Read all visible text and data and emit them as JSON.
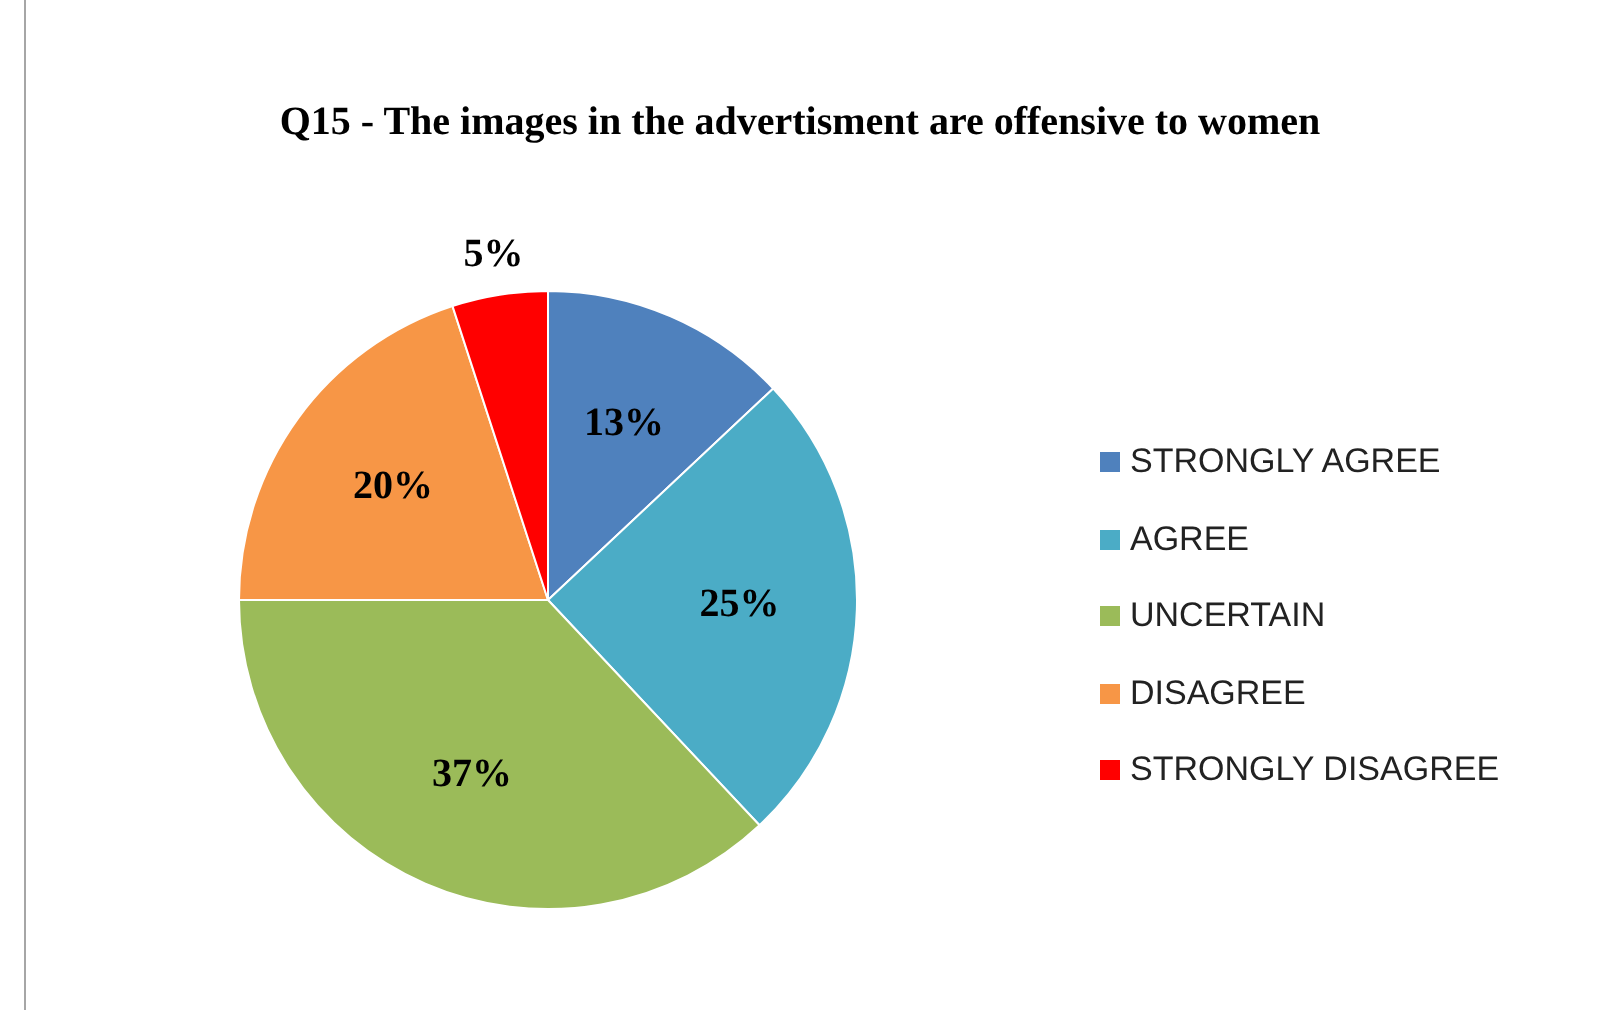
{
  "chart_data": {
    "type": "pie",
    "title": "Q15 - The images in the advertisment are offensive to women",
    "categories": [
      "STRONGLY AGREE",
      "AGREE",
      "UNCERTAIN",
      "DISAGREE",
      "STRONGLY DISAGREE"
    ],
    "values": [
      13,
      25,
      37,
      20,
      5
    ],
    "colors": [
      "#4f81bd",
      "#4bacc6",
      "#9bbb59",
      "#f79646",
      "#ff0000"
    ],
    "value_labels": [
      "13%",
      "25%",
      "37%",
      "20%",
      "5%"
    ],
    "legend": "right"
  }
}
